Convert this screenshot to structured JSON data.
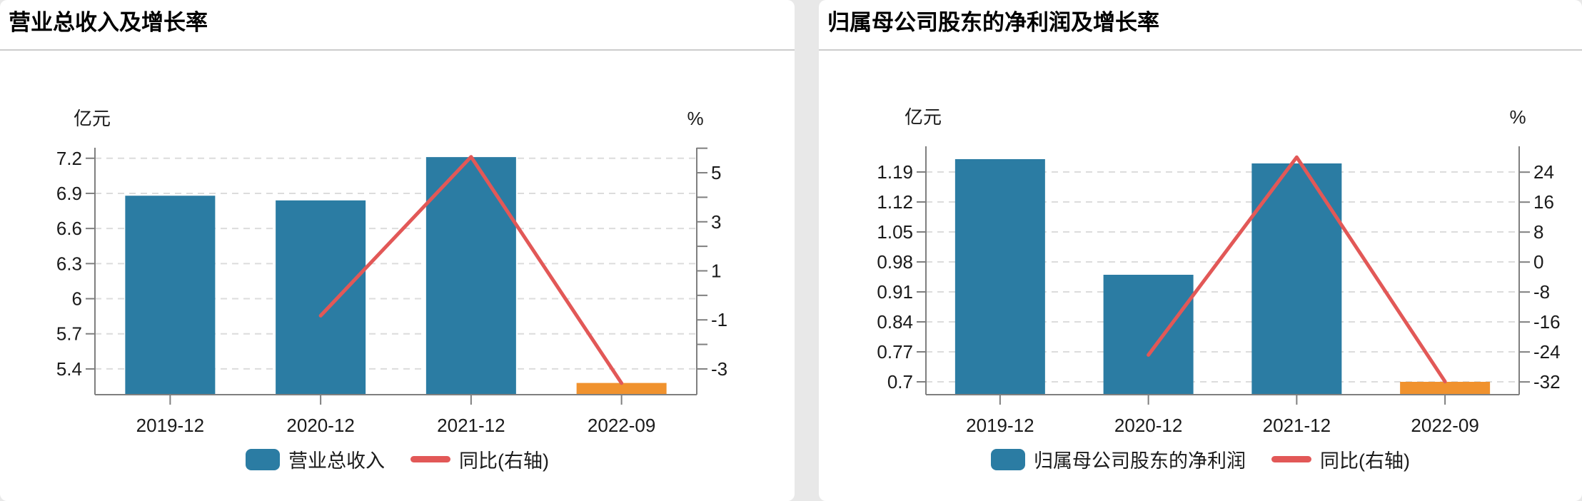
{
  "colors": {
    "bar_primary": "#2b7ca3",
    "bar_latest": "#f0922e",
    "yoy_line": "#e25857",
    "grid": "#dcdcdc",
    "axis": "#7f7f7f",
    "divider": "#cccccc",
    "card_bg": "#ffffff",
    "page_bg": "#e8e8e8",
    "text": "#1a1a1a"
  },
  "panels": [
    {
      "title": "营业总收入及增长率",
      "unit_left": "亿元",
      "unit_right": "%",
      "legend": [
        {
          "label": "营业总收入",
          "swatch": "bar",
          "color": "#2b7ca3"
        },
        {
          "label": "同比(右轴)",
          "swatch": "line",
          "color": "#e25857"
        }
      ]
    },
    {
      "title": "归属母公司股东的净利润及增长率",
      "unit_left": "亿元",
      "unit_right": "%",
      "legend": [
        {
          "label": "归属母公司股东的净利润",
          "swatch": "bar",
          "color": "#2b7ca3"
        },
        {
          "label": "同比(右轴)",
          "swatch": "line",
          "color": "#e25857"
        }
      ]
    }
  ],
  "chart_data": [
    {
      "type": "bar+line",
      "title": "营业总收入及增长率",
      "categories": [
        "2019-12",
        "2020-12",
        "2021-12",
        "2022-09"
      ],
      "series": [
        {
          "name": "营业总收入",
          "type": "bar",
          "axis": "left",
          "unit": "亿元",
          "values": [
            6.88,
            6.84,
            7.21,
            5.28
          ],
          "colors": [
            "#2b7ca3",
            "#2b7ca3",
            "#2b7ca3",
            "#f0922e"
          ]
        },
        {
          "name": "同比(右轴)",
          "type": "line",
          "axis": "right",
          "unit": "%",
          "values": [
            null,
            -0.83,
            5.65,
            -3.58
          ],
          "color": "#e25857"
        }
      ],
      "left_axis": {
        "label": "亿元",
        "range": [
          5.18,
          7.29
        ],
        "ticks": [
          {
            "v": 7.2,
            "label": "7.2"
          },
          {
            "v": 6.9,
            "label": "6.9"
          },
          {
            "v": 6.6,
            "label": "6.6"
          },
          {
            "v": 6.3,
            "label": "6.3"
          },
          {
            "v": 6.0,
            "label": "6"
          },
          {
            "v": 5.7,
            "label": "5.7"
          },
          {
            "v": 5.4,
            "label": "5.4"
          }
        ]
      },
      "right_axis": {
        "label": "%",
        "range": [
          -4.05,
          6.02
        ],
        "ticks": [
          {
            "v": 6
          },
          {
            "v": 5,
            "label": "5"
          },
          {
            "v": 4
          },
          {
            "v": 3,
            "label": "3"
          },
          {
            "v": 2
          },
          {
            "v": 1,
            "label": "1"
          },
          {
            "v": 0
          },
          {
            "v": -1,
            "label": "-1"
          },
          {
            "v": -2
          },
          {
            "v": -3,
            "label": "-3"
          }
        ]
      },
      "grid": "dashed-horizontal",
      "legend_position": "bottom"
    },
    {
      "type": "bar+line",
      "title": "归属母公司股东的净利润及增长率",
      "categories": [
        "2019-12",
        "2020-12",
        "2021-12",
        "2022-09"
      ],
      "series": [
        {
          "name": "归属母公司股东的净利润",
          "type": "bar",
          "axis": "left",
          "unit": "亿元",
          "values": [
            1.22,
            0.95,
            1.21,
            0.7
          ],
          "colors": [
            "#2b7ca3",
            "#2b7ca3",
            "#2b7ca3",
            "#f0922e"
          ]
        },
        {
          "name": "同比(右轴)",
          "type": "line",
          "axis": "right",
          "unit": "%",
          "values": [
            null,
            -24.8,
            28.0,
            -31.9
          ],
          "color": "#e25857"
        }
      ],
      "left_axis": {
        "label": "亿元",
        "range": [
          0.67,
          1.25
        ],
        "ticks": [
          {
            "v": 1.19,
            "label": "1.19"
          },
          {
            "v": 1.12,
            "label": "1.12"
          },
          {
            "v": 1.05,
            "label": "1.05"
          },
          {
            "v": 0.98,
            "label": "0.98"
          },
          {
            "v": 0.91,
            "label": "0.91"
          },
          {
            "v": 0.84,
            "label": "0.84"
          },
          {
            "v": 0.77,
            "label": "0.77"
          },
          {
            "v": 0.7,
            "label": "0.7"
          }
        ]
      },
      "right_axis": {
        "label": "%",
        "range": [
          -35.4,
          30.9
        ],
        "ticks": [
          {
            "v": 24,
            "label": "24"
          },
          {
            "v": 16,
            "label": "16"
          },
          {
            "v": 8,
            "label": "8"
          },
          {
            "v": 0,
            "label": "0"
          },
          {
            "v": -8,
            "label": "-8"
          },
          {
            "v": -16,
            "label": "-16"
          },
          {
            "v": -24,
            "label": "-24"
          },
          {
            "v": -32,
            "label": "-32"
          }
        ]
      },
      "grid": "dashed-horizontal",
      "legend_position": "bottom"
    }
  ]
}
